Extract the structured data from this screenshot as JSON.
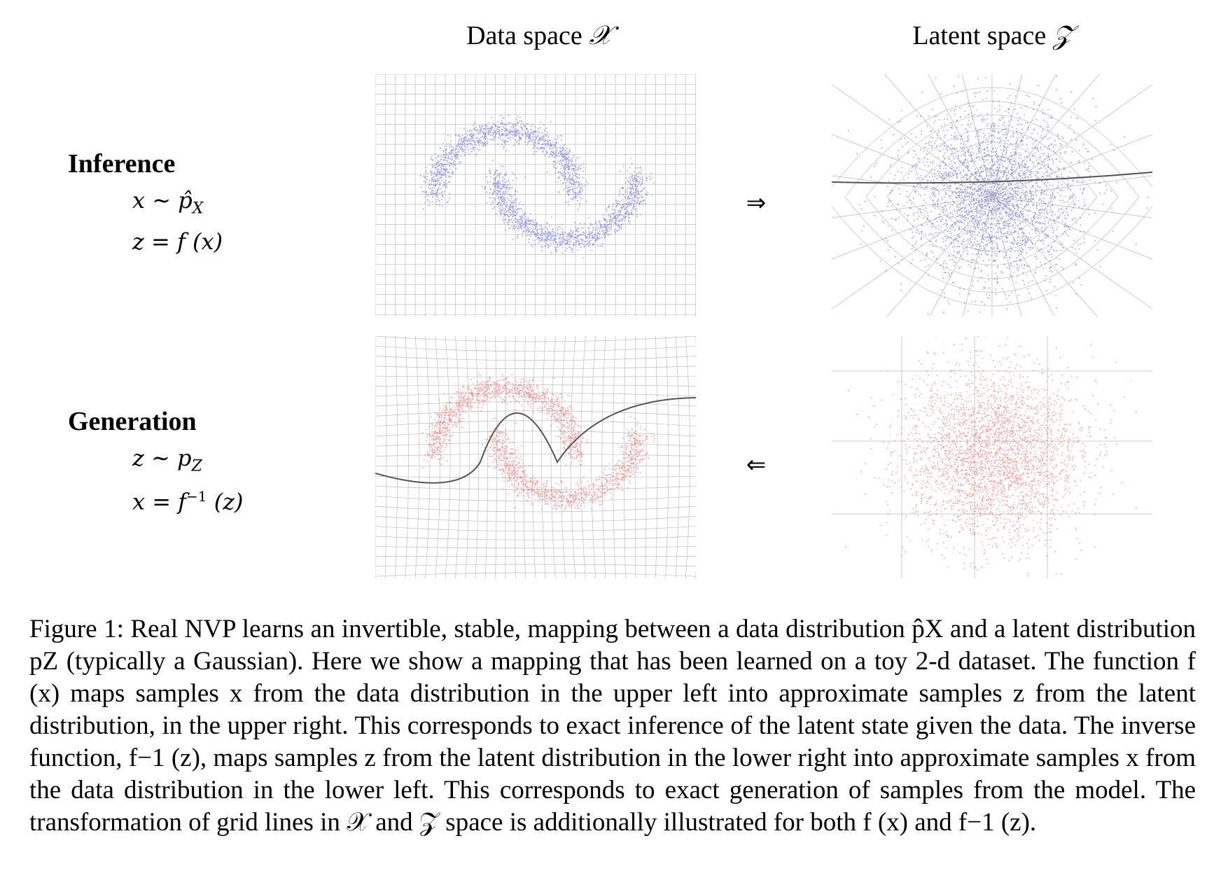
{
  "headers": {
    "data_space": "Data space",
    "data_space_symbol": "𝒳",
    "latent_space": "Latent space",
    "latent_space_symbol": "𝒵"
  },
  "rows": {
    "inference": {
      "title": "Inference",
      "eq1_lhs": "x",
      "eq1_rel": "∼",
      "eq1_rhs": "p̂",
      "eq1_sub": "X",
      "eq2_lhs": "z",
      "eq2_rel": "=",
      "eq2_rhs": "f (x)"
    },
    "generation": {
      "title": "Generation",
      "eq1_lhs": "z",
      "eq1_rel": "∼",
      "eq1_rhs": "p",
      "eq1_sub": "Z",
      "eq2_lhs": "x",
      "eq2_rel": "=",
      "eq2_rhs_f": "f",
      "eq2_sup": "−1",
      "eq2_rhs_arg": "(z)"
    }
  },
  "arrows": {
    "forward": "⇒",
    "backward": "⇐"
  },
  "colors": {
    "inference_points": "#2a2af0",
    "generation_points": "#f03030",
    "grid": "#bdbdbd",
    "axis_line": "#555555"
  },
  "caption": "Figure 1: Real NVP learns an invertible, stable, mapping between a data distribution p̂X and a latent distribution pZ (typically a Gaussian). Here we show a mapping that has been learned on a toy 2-d dataset. The function f (x) maps samples x from the data distribution in the upper left into approximate samples z from the latent distribution, in the upper right. This corresponds to exact inference of the latent state given the data. The inverse function, f−1 (z), maps samples z from the latent distribution in the lower right into approximate samples x from the data distribution in the lower left. This corresponds to exact generation of samples from the model. The transformation of grid lines in 𝒳 and 𝒵 space is additionally illustrated for both f (x) and f−1 (z)."
}
